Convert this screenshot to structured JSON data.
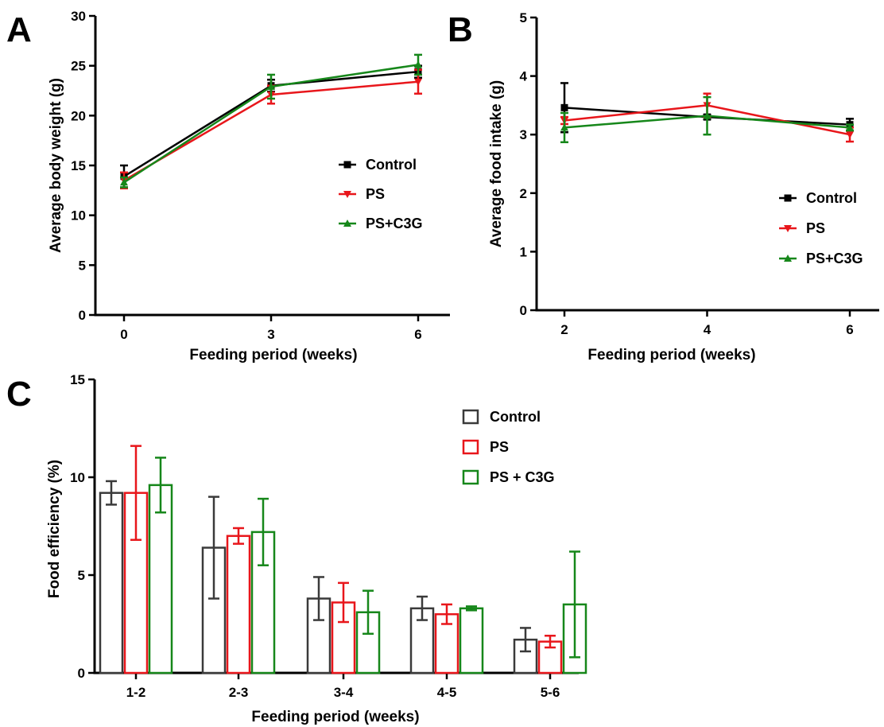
{
  "colors": {
    "Control": "#000000",
    "PS": "#e8161b",
    "PS+C3G": "#16871a",
    "ControlBar": "#3a3a3a"
  },
  "chart_data": [
    {
      "panel": "A",
      "type": "line",
      "x": [
        0,
        3,
        6
      ],
      "x_ticks": [
        "0",
        "3",
        "6"
      ],
      "xlabel": "Feeding period (weeks)",
      "ylabel": "Average body weight (g)",
      "ylim": [
        0,
        30
      ],
      "y_ticks": [
        "0",
        "5",
        "10",
        "15",
        "20",
        "25",
        "30"
      ],
      "legend_position": "right",
      "series": [
        {
          "name": "Control",
          "marker": "square",
          "values": [
            13.9,
            23.0,
            24.4
          ],
          "errors": [
            1.1,
            0.6,
            0.6
          ]
        },
        {
          "name": "PS",
          "marker": "triangle-down",
          "values": [
            13.5,
            22.1,
            23.4
          ],
          "errors": [
            0.8,
            0.9,
            1.2
          ]
        },
        {
          "name": "PS+C3G",
          "marker": "triangle-up",
          "values": [
            13.3,
            22.9,
            25.1
          ],
          "errors": [
            0.5,
            1.2,
            1.0
          ]
        }
      ]
    },
    {
      "panel": "B",
      "type": "line",
      "x": [
        2,
        4,
        6
      ],
      "x_ticks": [
        "2",
        "4",
        "6"
      ],
      "xlabel": "Feeding period (weeks)",
      "ylabel": "Average food intake (g)",
      "ylim": [
        0,
        5
      ],
      "y_ticks": [
        "0",
        "1",
        "2",
        "3",
        "4",
        "5"
      ],
      "legend_position": "bottom-right",
      "series": [
        {
          "name": "Control",
          "marker": "square",
          "values": [
            3.46,
            3.3,
            3.17
          ],
          "errors": [
            0.42,
            0.04,
            0.1
          ]
        },
        {
          "name": "PS",
          "marker": "triangle-down",
          "values": [
            3.24,
            3.5,
            3.0
          ],
          "errors": [
            0.06,
            0.2,
            0.12
          ]
        },
        {
          "name": "PS+C3G",
          "marker": "triangle-up",
          "values": [
            3.12,
            3.32,
            3.12
          ],
          "errors": [
            0.25,
            0.32,
            0.05
          ]
        }
      ]
    },
    {
      "panel": "C",
      "type": "bar",
      "categories": [
        "1-2",
        "2-3",
        "3-4",
        "4-5",
        "5-6"
      ],
      "xlabel": "Feeding period (weeks)",
      "ylabel": "Food efficiency (%)",
      "ylim": [
        0,
        15
      ],
      "y_ticks": [
        "0",
        "5",
        "10",
        "15"
      ],
      "legend_position": "top-right",
      "series": [
        {
          "name": "Control",
          "values": [
            9.2,
            6.4,
            3.8,
            3.3,
            1.7
          ],
          "errors": [
            0.6,
            2.6,
            1.1,
            0.6,
            0.6
          ]
        },
        {
          "name": "PS",
          "values": [
            9.2,
            7.0,
            3.6,
            3.0,
            1.6
          ],
          "errors": [
            2.4,
            0.4,
            1.0,
            0.5,
            0.3
          ]
        },
        {
          "name": "PS + C3G",
          "values": [
            9.6,
            7.2,
            3.1,
            3.3,
            3.5
          ],
          "errors": [
            1.4,
            1.7,
            1.1,
            0.1,
            2.7
          ]
        }
      ]
    }
  ]
}
